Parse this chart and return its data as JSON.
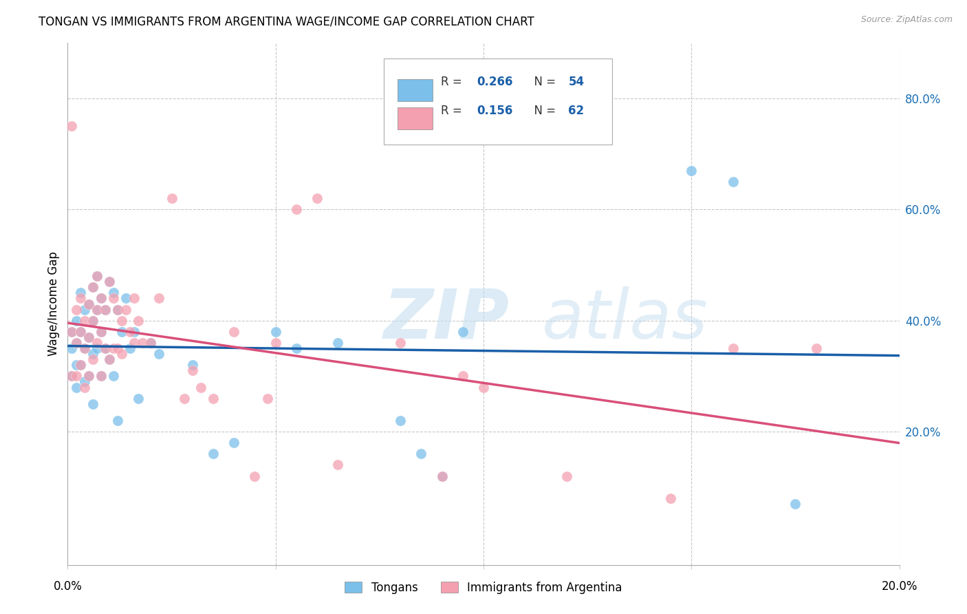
{
  "title": "TONGAN VS IMMIGRANTS FROM ARGENTINA WAGE/INCOME GAP CORRELATION CHART",
  "source": "Source: ZipAtlas.com",
  "ylabel": "Wage/Income Gap",
  "watermark_zip": "ZIP",
  "watermark_atlas": "atlas",
  "blue_R": 0.266,
  "blue_N": 54,
  "pink_R": 0.156,
  "pink_N": 62,
  "legend_label_blue": "Tongans",
  "legend_label_pink": "Immigrants from Argentina",
  "blue_color": "#7bbfea",
  "pink_color": "#f4a0b0",
  "blue_line_color": "#1a5fa8",
  "pink_line_color": "#d94f7a",
  "ytick_labels": [
    "20.0%",
    "40.0%",
    "60.0%",
    "80.0%"
  ],
  "ytick_values": [
    0.2,
    0.4,
    0.6,
    0.8
  ],
  "xlim": [
    0.0,
    0.2
  ],
  "ylim": [
    -0.04,
    0.9
  ],
  "blue_x": [
    0.001,
    0.001,
    0.001,
    0.002,
    0.002,
    0.002,
    0.002,
    0.003,
    0.003,
    0.003,
    0.004,
    0.004,
    0.004,
    0.005,
    0.005,
    0.005,
    0.006,
    0.006,
    0.006,
    0.006,
    0.007,
    0.007,
    0.007,
    0.008,
    0.008,
    0.008,
    0.009,
    0.009,
    0.01,
    0.01,
    0.011,
    0.011,
    0.012,
    0.012,
    0.013,
    0.014,
    0.015,
    0.016,
    0.017,
    0.02,
    0.022,
    0.03,
    0.035,
    0.04,
    0.05,
    0.055,
    0.065,
    0.08,
    0.085,
    0.09,
    0.095,
    0.15,
    0.16,
    0.175
  ],
  "blue_y": [
    0.38,
    0.35,
    0.3,
    0.4,
    0.36,
    0.32,
    0.28,
    0.45,
    0.38,
    0.32,
    0.42,
    0.35,
    0.29,
    0.43,
    0.37,
    0.3,
    0.46,
    0.4,
    0.34,
    0.25,
    0.48,
    0.42,
    0.35,
    0.44,
    0.38,
    0.3,
    0.42,
    0.35,
    0.47,
    0.33,
    0.45,
    0.3,
    0.42,
    0.22,
    0.38,
    0.44,
    0.35,
    0.38,
    0.26,
    0.36,
    0.34,
    0.32,
    0.16,
    0.18,
    0.38,
    0.35,
    0.36,
    0.22,
    0.16,
    0.12,
    0.38,
    0.67,
    0.65,
    0.07
  ],
  "pink_x": [
    0.001,
    0.001,
    0.001,
    0.002,
    0.002,
    0.002,
    0.003,
    0.003,
    0.003,
    0.004,
    0.004,
    0.004,
    0.005,
    0.005,
    0.005,
    0.006,
    0.006,
    0.006,
    0.007,
    0.007,
    0.007,
    0.008,
    0.008,
    0.008,
    0.009,
    0.009,
    0.01,
    0.01,
    0.011,
    0.011,
    0.012,
    0.012,
    0.013,
    0.013,
    0.014,
    0.015,
    0.016,
    0.016,
    0.017,
    0.018,
    0.02,
    0.022,
    0.025,
    0.028,
    0.03,
    0.032,
    0.035,
    0.04,
    0.045,
    0.048,
    0.05,
    0.055,
    0.06,
    0.065,
    0.08,
    0.09,
    0.095,
    0.1,
    0.12,
    0.145,
    0.16,
    0.18
  ],
  "pink_y": [
    0.75,
    0.38,
    0.3,
    0.42,
    0.36,
    0.3,
    0.44,
    0.38,
    0.32,
    0.4,
    0.35,
    0.28,
    0.43,
    0.37,
    0.3,
    0.46,
    0.4,
    0.33,
    0.48,
    0.42,
    0.36,
    0.44,
    0.38,
    0.3,
    0.42,
    0.35,
    0.47,
    0.33,
    0.44,
    0.35,
    0.42,
    0.35,
    0.4,
    0.34,
    0.42,
    0.38,
    0.44,
    0.36,
    0.4,
    0.36,
    0.36,
    0.44,
    0.62,
    0.26,
    0.31,
    0.28,
    0.26,
    0.38,
    0.12,
    0.26,
    0.36,
    0.6,
    0.62,
    0.14,
    0.36,
    0.12,
    0.3,
    0.28,
    0.12,
    0.08,
    0.35,
    0.35
  ]
}
